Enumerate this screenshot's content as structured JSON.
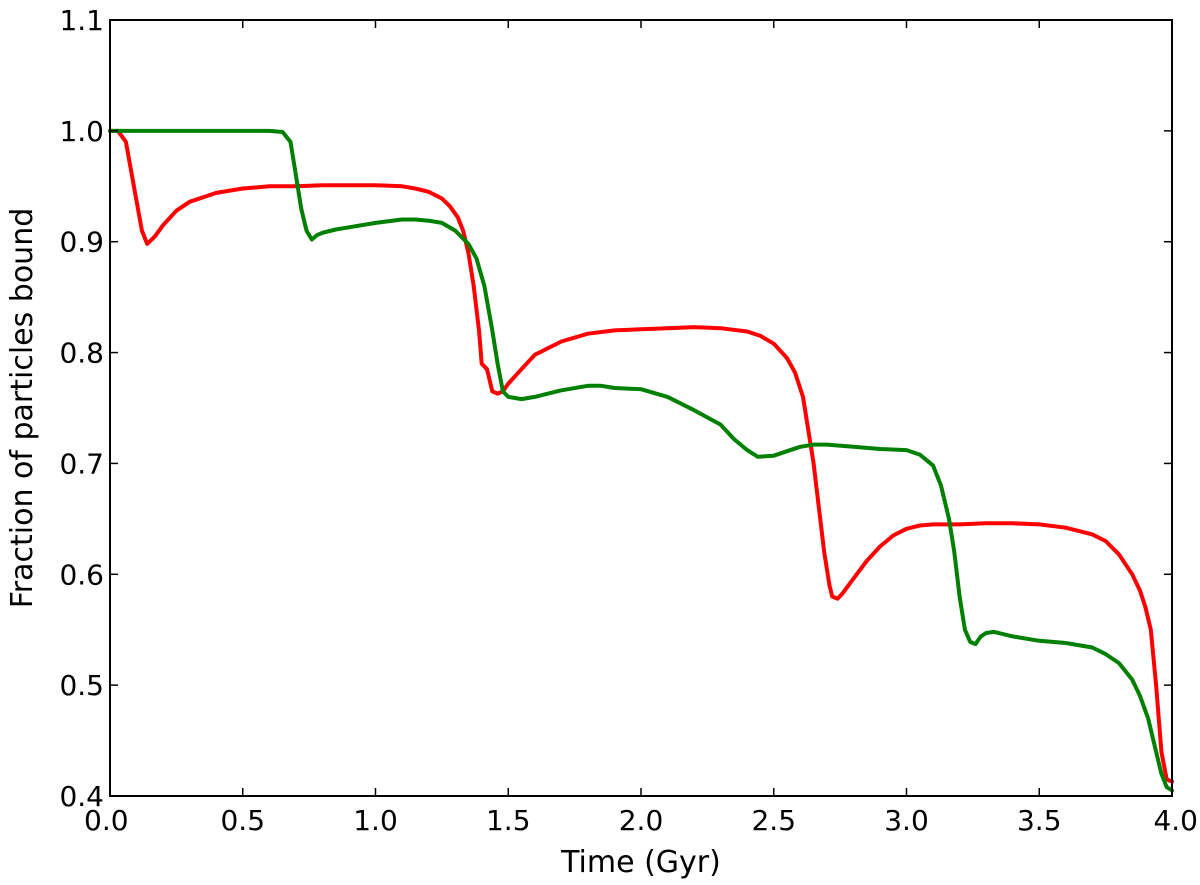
{
  "chart_data": {
    "type": "line",
    "title": "",
    "xlabel": "Time (Gyr)",
    "ylabel": "Fraction of particles bound",
    "xlim": [
      0.0,
      4.0
    ],
    "ylim": [
      0.4,
      1.1
    ],
    "xticks": [
      "0.0",
      "0.5",
      "1.0",
      "1.5",
      "2.0",
      "2.5",
      "3.0",
      "3.5",
      "4.0"
    ],
    "yticks": [
      "0.4",
      "0.5",
      "0.6",
      "0.7",
      "0.8",
      "0.9",
      "1.0",
      "1.1"
    ],
    "grid": false,
    "legend": "none",
    "series": [
      {
        "color": "#ff0000",
        "x": [
          0.0,
          0.03,
          0.06,
          0.09,
          0.12,
          0.14,
          0.17,
          0.2,
          0.25,
          0.3,
          0.4,
          0.5,
          0.6,
          0.7,
          0.8,
          0.9,
          1.0,
          1.1,
          1.15,
          1.2,
          1.25,
          1.28,
          1.31,
          1.33,
          1.35,
          1.37,
          1.39,
          1.4,
          1.42,
          1.44,
          1.46,
          1.48,
          1.5,
          1.55,
          1.6,
          1.7,
          1.8,
          1.9,
          2.0,
          2.1,
          2.2,
          2.3,
          2.4,
          2.45,
          2.5,
          2.55,
          2.58,
          2.61,
          2.63,
          2.65,
          2.67,
          2.69,
          2.71,
          2.72,
          2.74,
          2.76,
          2.8,
          2.85,
          2.9,
          2.95,
          3.0,
          3.05,
          3.1,
          3.2,
          3.3,
          3.4,
          3.5,
          3.6,
          3.7,
          3.75,
          3.8,
          3.85,
          3.88,
          3.9,
          3.92,
          3.94,
          3.96,
          3.98,
          4.0
        ],
        "y": [
          1.0,
          1.0,
          0.99,
          0.95,
          0.91,
          0.898,
          0.905,
          0.915,
          0.928,
          0.936,
          0.944,
          0.948,
          0.95,
          0.95,
          0.951,
          0.951,
          0.951,
          0.95,
          0.948,
          0.945,
          0.939,
          0.932,
          0.922,
          0.91,
          0.89,
          0.86,
          0.82,
          0.79,
          0.785,
          0.765,
          0.763,
          0.765,
          0.772,
          0.785,
          0.798,
          0.81,
          0.817,
          0.82,
          0.821,
          0.822,
          0.823,
          0.822,
          0.819,
          0.815,
          0.808,
          0.795,
          0.782,
          0.76,
          0.73,
          0.7,
          0.66,
          0.62,
          0.59,
          0.58,
          0.578,
          0.583,
          0.596,
          0.612,
          0.625,
          0.635,
          0.641,
          0.644,
          0.645,
          0.645,
          0.646,
          0.646,
          0.645,
          0.642,
          0.636,
          0.63,
          0.618,
          0.6,
          0.585,
          0.57,
          0.55,
          0.5,
          0.44,
          0.415,
          0.413
        ]
      },
      {
        "color": "#008000",
        "x": [
          0.0,
          0.1,
          0.2,
          0.3,
          0.4,
          0.5,
          0.6,
          0.65,
          0.68,
          0.7,
          0.72,
          0.74,
          0.76,
          0.78,
          0.8,
          0.85,
          0.9,
          1.0,
          1.1,
          1.15,
          1.2,
          1.25,
          1.3,
          1.35,
          1.38,
          1.41,
          1.44,
          1.46,
          1.48,
          1.5,
          1.55,
          1.6,
          1.65,
          1.7,
          1.8,
          1.85,
          1.9,
          2.0,
          2.1,
          2.2,
          2.3,
          2.35,
          2.4,
          2.44,
          2.5,
          2.55,
          2.6,
          2.65,
          2.7,
          2.8,
          2.9,
          3.0,
          3.05,
          3.1,
          3.13,
          3.16,
          3.18,
          3.2,
          3.22,
          3.24,
          3.26,
          3.28,
          3.3,
          3.33,
          3.4,
          3.5,
          3.6,
          3.7,
          3.75,
          3.8,
          3.85,
          3.88,
          3.91,
          3.94,
          3.96,
          3.98,
          4.0
        ],
        "y": [
          1.0,
          1.0,
          1.0,
          1.0,
          1.0,
          1.0,
          1.0,
          0.999,
          0.99,
          0.96,
          0.93,
          0.91,
          0.902,
          0.906,
          0.908,
          0.911,
          0.913,
          0.917,
          0.92,
          0.92,
          0.919,
          0.917,
          0.91,
          0.898,
          0.885,
          0.86,
          0.82,
          0.79,
          0.765,
          0.76,
          0.758,
          0.76,
          0.763,
          0.766,
          0.77,
          0.77,
          0.768,
          0.767,
          0.76,
          0.748,
          0.735,
          0.722,
          0.712,
          0.706,
          0.707,
          0.711,
          0.715,
          0.717,
          0.717,
          0.715,
          0.713,
          0.712,
          0.708,
          0.698,
          0.68,
          0.65,
          0.62,
          0.58,
          0.55,
          0.539,
          0.537,
          0.544,
          0.547,
          0.548,
          0.544,
          0.54,
          0.538,
          0.534,
          0.528,
          0.52,
          0.505,
          0.49,
          0.47,
          0.44,
          0.42,
          0.408,
          0.405
        ]
      }
    ]
  }
}
